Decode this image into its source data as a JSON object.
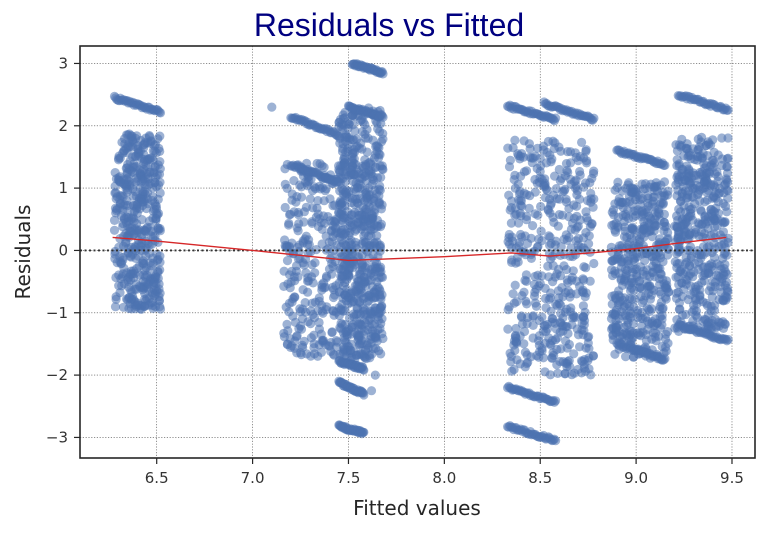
{
  "chart_data": {
    "type": "scatter",
    "title": "Residuals vs Fitted",
    "xlabel": "Fitted values",
    "ylabel": "Residuals",
    "xlim": [
      6.1,
      9.62
    ],
    "ylim": [
      -3.33,
      3.28
    ],
    "x_ticks": [
      6.5,
      7.0,
      7.5,
      8.0,
      8.5,
      9.0,
      9.5
    ],
    "x_tick_labels": [
      "6.5",
      "7.0",
      "7.5",
      "8.0",
      "8.5",
      "9.0",
      "9.5"
    ],
    "y_ticks": [
      -3,
      -2,
      -1,
      0,
      1,
      2,
      3
    ],
    "y_tick_labels": [
      "−3",
      "−2",
      "−1",
      "0",
      "1",
      "2",
      "3"
    ],
    "grid": true,
    "reference_line_y": 0,
    "colors": {
      "points": "#4c72b0",
      "smooth_line": "#d62728",
      "title": "#000080",
      "reference_line": "#333333"
    },
    "clusters": [
      {
        "x_range": [
          6.28,
          6.52
        ],
        "y_range": [
          -0.95,
          1.87
        ]
      },
      {
        "x_range": [
          7.16,
          7.68
        ],
        "y_range": [
          -1.7,
          1.4
        ]
      },
      {
        "x_range": [
          7.45,
          7.68
        ],
        "y_range": [
          -1.75,
          2.3
        ]
      },
      {
        "x_range": [
          8.33,
          8.78
        ],
        "y_range": [
          -2.0,
          1.8
        ]
      },
      {
        "x_range": [
          8.87,
          9.17
        ],
        "y_range": [
          -1.75,
          1.1
        ]
      },
      {
        "x_range": [
          9.2,
          9.48
        ],
        "y_range": [
          -1.3,
          1.82
        ]
      }
    ],
    "bands": [
      {
        "x_range": [
          6.28,
          6.52
        ],
        "y_start": 2.45,
        "y_end": 2.22
      },
      {
        "x_range": [
          7.2,
          7.45
        ],
        "y_start": 2.15,
        "y_end": 1.85
      },
      {
        "x_range": [
          7.2,
          7.45
        ],
        "y_start": 1.38,
        "y_end": 1.1
      },
      {
        "x_range": [
          7.52,
          7.68
        ],
        "y_start": 3.0,
        "y_end": 2.85
      },
      {
        "x_range": [
          7.5,
          7.68
        ],
        "y_start": 2.3,
        "y_end": 2.15
      },
      {
        "x_range": [
          7.45,
          7.58
        ],
        "y_start": -1.78,
        "y_end": -1.9
      },
      {
        "x_range": [
          7.45,
          7.58
        ],
        "y_start": -2.12,
        "y_end": -2.3
      },
      {
        "x_range": [
          7.45,
          7.58
        ],
        "y_start": -2.82,
        "y_end": -2.93
      },
      {
        "x_range": [
          8.33,
          8.58
        ],
        "y_start": 2.32,
        "y_end": 2.1
      },
      {
        "x_range": [
          8.52,
          8.78
        ],
        "y_start": 2.36,
        "y_end": 2.1
      },
      {
        "x_range": [
          8.33,
          8.58
        ],
        "y_start": -2.2,
        "y_end": -2.43
      },
      {
        "x_range": [
          8.33,
          8.58
        ],
        "y_start": -2.82,
        "y_end": -3.05
      },
      {
        "x_range": [
          8.9,
          9.15
        ],
        "y_start": 1.6,
        "y_end": 1.38
      },
      {
        "x_range": [
          8.9,
          9.15
        ],
        "y_start": -1.5,
        "y_end": -1.75
      },
      {
        "x_range": [
          9.22,
          9.48
        ],
        "y_start": 2.5,
        "y_end": 2.25
      },
      {
        "x_range": [
          9.22,
          9.48
        ],
        "y_start": -1.2,
        "y_end": -1.45
      }
    ],
    "outliers": [
      {
        "x": 7.64,
        "y": -2.0
      },
      {
        "x": 7.62,
        "y": -2.25
      },
      {
        "x": 7.1,
        "y": 2.3
      }
    ],
    "smooth_line": {
      "x": [
        6.27,
        6.5,
        7.0,
        7.5,
        8.0,
        8.35,
        8.55,
        8.8,
        9.0,
        9.2,
        9.47
      ],
      "y": [
        0.21,
        0.15,
        0.0,
        -0.16,
        -0.1,
        -0.04,
        -0.09,
        -0.03,
        0.03,
        0.11,
        0.21
      ]
    }
  }
}
